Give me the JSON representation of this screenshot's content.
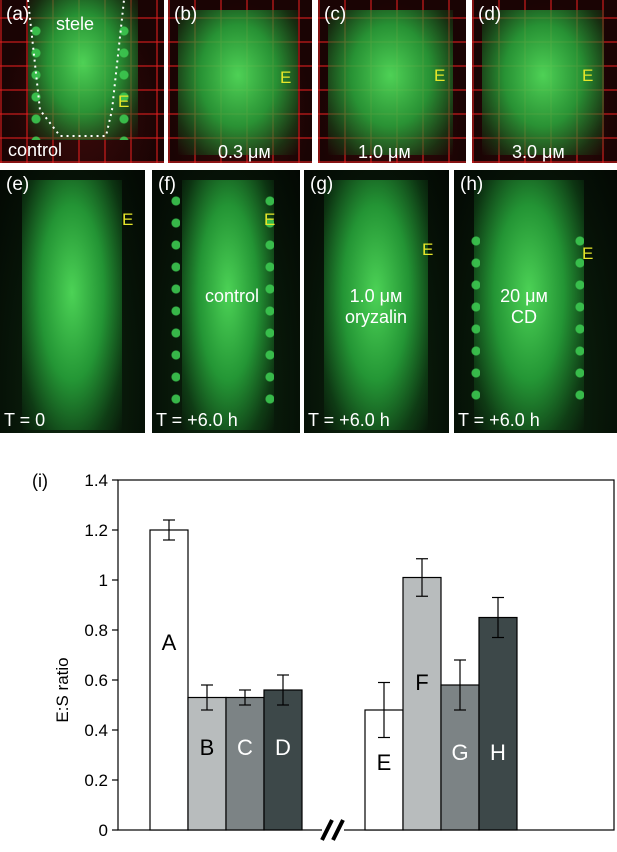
{
  "panels_top": [
    {
      "tag": "(a)",
      "e": "E",
      "title": "stele",
      "cap": "control"
    },
    {
      "tag": "(b)",
      "e": "E",
      "cap": "0.3 μм"
    },
    {
      "tag": "(c)",
      "e": "E",
      "cap": "1.0 μм"
    },
    {
      "tag": "(d)",
      "e": "E",
      "cap": "3.0 μм"
    }
  ],
  "panels_bottom": [
    {
      "tag": "(e)",
      "e": "E",
      "mid": "",
      "time": "T = 0"
    },
    {
      "tag": "(f)",
      "e": "E",
      "mid": "control",
      "time": "T = +6.0 h"
    },
    {
      "tag": "(g)",
      "e": "E",
      "mid": "1.0 μм\noryzalin",
      "time": "T = +6.0 h"
    },
    {
      "tag": "(h)",
      "e": "E",
      "mid": "20 μм\nCD",
      "time": "T = +6.0 h"
    }
  ],
  "chart_data": {
    "type": "bar",
    "panel_label": "(i)",
    "ylabel": "E:S ratio",
    "ylim": [
      0,
      1.4
    ],
    "yticks": [
      "0",
      "0.2",
      "0.4",
      "0.6",
      "0.8",
      "1",
      "1.2",
      "1.4"
    ],
    "axis_break": true,
    "grid": false,
    "bars": [
      {
        "label": "A",
        "value": 1.2,
        "error": 0.04,
        "color": "#ffffff",
        "label_color": "#000000",
        "group": 1
      },
      {
        "label": "B",
        "value": 0.53,
        "error": 0.05,
        "color": "#b8bcbd",
        "label_color": "#000000",
        "group": 1
      },
      {
        "label": "C",
        "value": 0.53,
        "error": 0.03,
        "color": "#7c8385",
        "label_color": "#ffffff",
        "group": 1
      },
      {
        "label": "D",
        "value": 0.56,
        "error": 0.06,
        "color": "#3d4849",
        "label_color": "#ffffff",
        "group": 1
      },
      {
        "label": "E",
        "value": 0.48,
        "error": 0.11,
        "color": "#ffffff",
        "label_color": "#000000",
        "group": 2
      },
      {
        "label": "F",
        "value": 1.01,
        "error": 0.075,
        "color": "#b8bcbd",
        "label_color": "#000000",
        "group": 2
      },
      {
        "label": "G",
        "value": 0.58,
        "error": 0.1,
        "color": "#7c8385",
        "label_color": "#ffffff",
        "group": 2
      },
      {
        "label": "H",
        "value": 0.85,
        "error": 0.08,
        "color": "#3d4849",
        "label_color": "#ffffff",
        "group": 2
      }
    ]
  }
}
